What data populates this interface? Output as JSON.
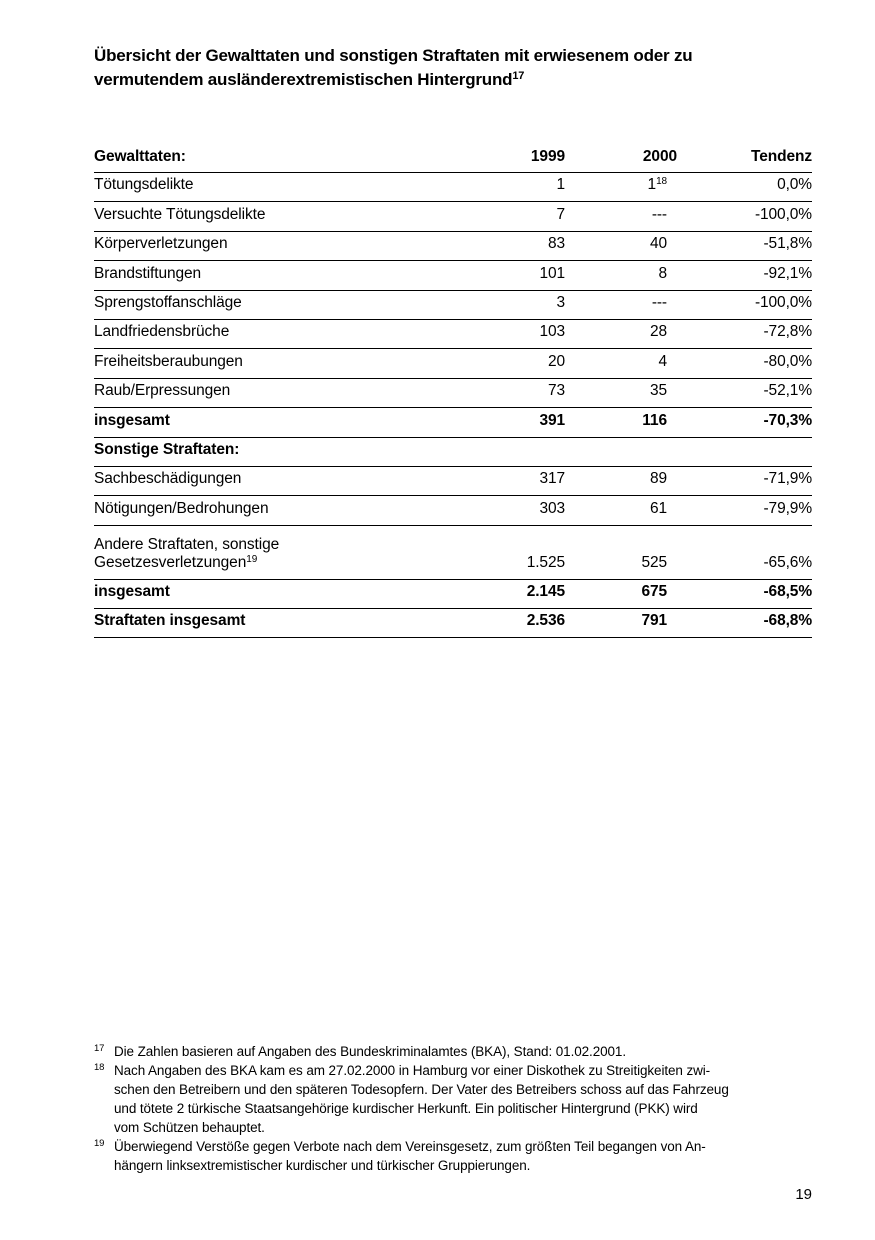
{
  "page": {
    "background": "#ffffff",
    "text_color": "#000000",
    "page_number": "19"
  },
  "title": {
    "text": "Übersicht der Gewalttaten und sonstigen Straftaten mit erwiesenem oder zu\nvermutendem ausländerextremistischen Hintergrund",
    "footnote_ref": "17"
  },
  "table": {
    "header": {
      "label": "Gewalttaten:",
      "y1999": "1999",
      "y2000": "2000",
      "tendenz": "Tendenz"
    },
    "rows": [
      {
        "label": "Tötungsdelikte",
        "y1999": "1",
        "y2000": "1",
        "sup2000": "18",
        "tendenz": "0,0%"
      },
      {
        "label": "Versuchte Tötungsdelikte",
        "y1999": "7",
        "y2000": "---",
        "tendenz": "-100,0%"
      },
      {
        "label": "Körperverletzungen",
        "y1999": "83",
        "y2000": "40",
        "tendenz": "-51,8%"
      },
      {
        "label": "Brandstiftungen",
        "y1999": "101",
        "y2000": "8",
        "tendenz": "-92,1%"
      },
      {
        "label": "Sprengstoffanschläge",
        "y1999": "3",
        "y2000": "---",
        "tendenz": "-100,0%"
      },
      {
        "label": "Landfriedensbrüche",
        "y1999": "103",
        "y2000": "28",
        "tendenz": "-72,8%"
      },
      {
        "label": "Freiheitsberaubungen",
        "y1999": "20",
        "y2000": "4",
        "tendenz": "-80,0%"
      },
      {
        "label": "Raub/Erpressungen",
        "y1999": "73",
        "y2000": "35",
        "tendenz": "-52,1%"
      },
      {
        "label": "insgesamt",
        "y1999": "391",
        "y2000": "116",
        "tendenz": "-70,3%",
        "bold": true
      },
      {
        "label": "Sonstige Straftaten:",
        "section": true,
        "bold": true
      },
      {
        "label": "Sachbeschädigungen",
        "y1999": "317",
        "y2000": "89",
        "tendenz": "-71,9%"
      },
      {
        "label": "Nötigungen/Bedrohungen",
        "y1999": "303",
        "y2000": "61",
        "tendenz": "-79,9%"
      },
      {
        "label": "Andere Straftaten, sonstige\nGesetzesverletzungen",
        "sup_label": "19",
        "y1999": "1.525",
        "y2000": "525",
        "tendenz": "-65,6%"
      },
      {
        "label": "insgesamt",
        "y1999": "2.145",
        "y2000": "675",
        "tendenz": "-68,5%",
        "bold": true
      },
      {
        "label": "Straftaten insgesamt",
        "y1999": "2.536",
        "y2000": "791",
        "tendenz": "-68,8%",
        "bold": true
      }
    ]
  },
  "footnotes": [
    {
      "ref": "17",
      "text": "Die Zahlen basieren auf Angaben des Bundeskriminalamtes (BKA), Stand: 01.02.2001."
    },
    {
      "ref": "18",
      "text": "Nach Angaben des BKA kam es am 27.02.2000 in Hamburg vor einer Diskothek zu Streitigkeiten zwi-\nschen den Betreibern und den späteren Todesopfern. Der Vater des Betreibers schoss auf das Fahrzeug\nund tötete 2 türkische Staatsangehörige kurdischer Herkunft. Ein politischer Hintergrund (PKK) wird\nvom Schützen behauptet."
    },
    {
      "ref": "19",
      "text": "Überwiegend Verstöße gegen Verbote nach dem Vereinsgesetz, zum größten Teil begangen von An-\nhängern linksextremistischer kurdischer und türkischer Gruppierungen."
    }
  ]
}
